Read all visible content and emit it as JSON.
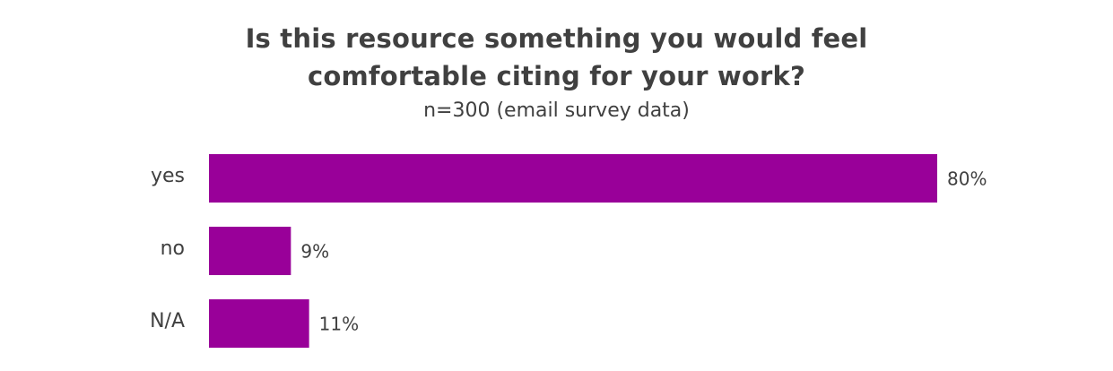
{
  "chart_data": {
    "type": "bar",
    "orientation": "horizontal",
    "title_lines": [
      "Is this resource something you would feel",
      "comfortable citing for your work?"
    ],
    "subtitle": "n=300 (email survey data)",
    "categories": [
      "yes",
      "no",
      "N/A"
    ],
    "values": [
      80,
      9,
      11
    ],
    "value_labels": [
      "80%",
      "9%",
      "11%"
    ],
    "xlim": [
      0,
      100
    ],
    "grid": false,
    "legend": "none",
    "bar_color": "#990099"
  }
}
